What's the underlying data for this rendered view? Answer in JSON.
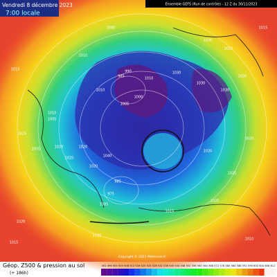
{
  "header": {
    "date": "Vendredi 8 décembre 2023",
    "time": "7:00 locale",
    "model": "Ensemble GEFS  (Run de contrôle)  -  12 Z du 30/11/2023"
  },
  "footer": {
    "title": "Géop. Z500 & pression au sol",
    "lead": "(+ 186h)",
    "copyright": "Copyright © 2023 Meteociel.fr"
  },
  "isobar_labels": [
    "1015",
    "1000",
    "1010",
    "1005",
    "1010",
    "1020",
    "1025",
    "1020",
    "1010",
    "1005",
    "985",
    "990",
    "1000",
    "1010",
    "1035",
    "1030",
    "1040",
    "1020",
    "1025",
    "1020",
    "1030",
    "975",
    "985",
    "1005",
    "1015",
    "1020",
    "1025",
    "1020",
    "1010",
    "1020",
    "1015",
    "1030",
    "1030",
    "1025",
    "1020",
    "1015",
    "1010"
  ],
  "legend": {
    "labels": [
      492,
      496,
      500,
      504,
      508,
      512,
      516,
      520,
      524,
      528,
      532,
      536,
      540,
      544,
      548,
      552,
      556,
      560,
      564,
      568,
      572,
      576,
      580,
      584,
      588,
      592,
      596,
      600,
      604,
      608,
      612
    ]
  }
}
